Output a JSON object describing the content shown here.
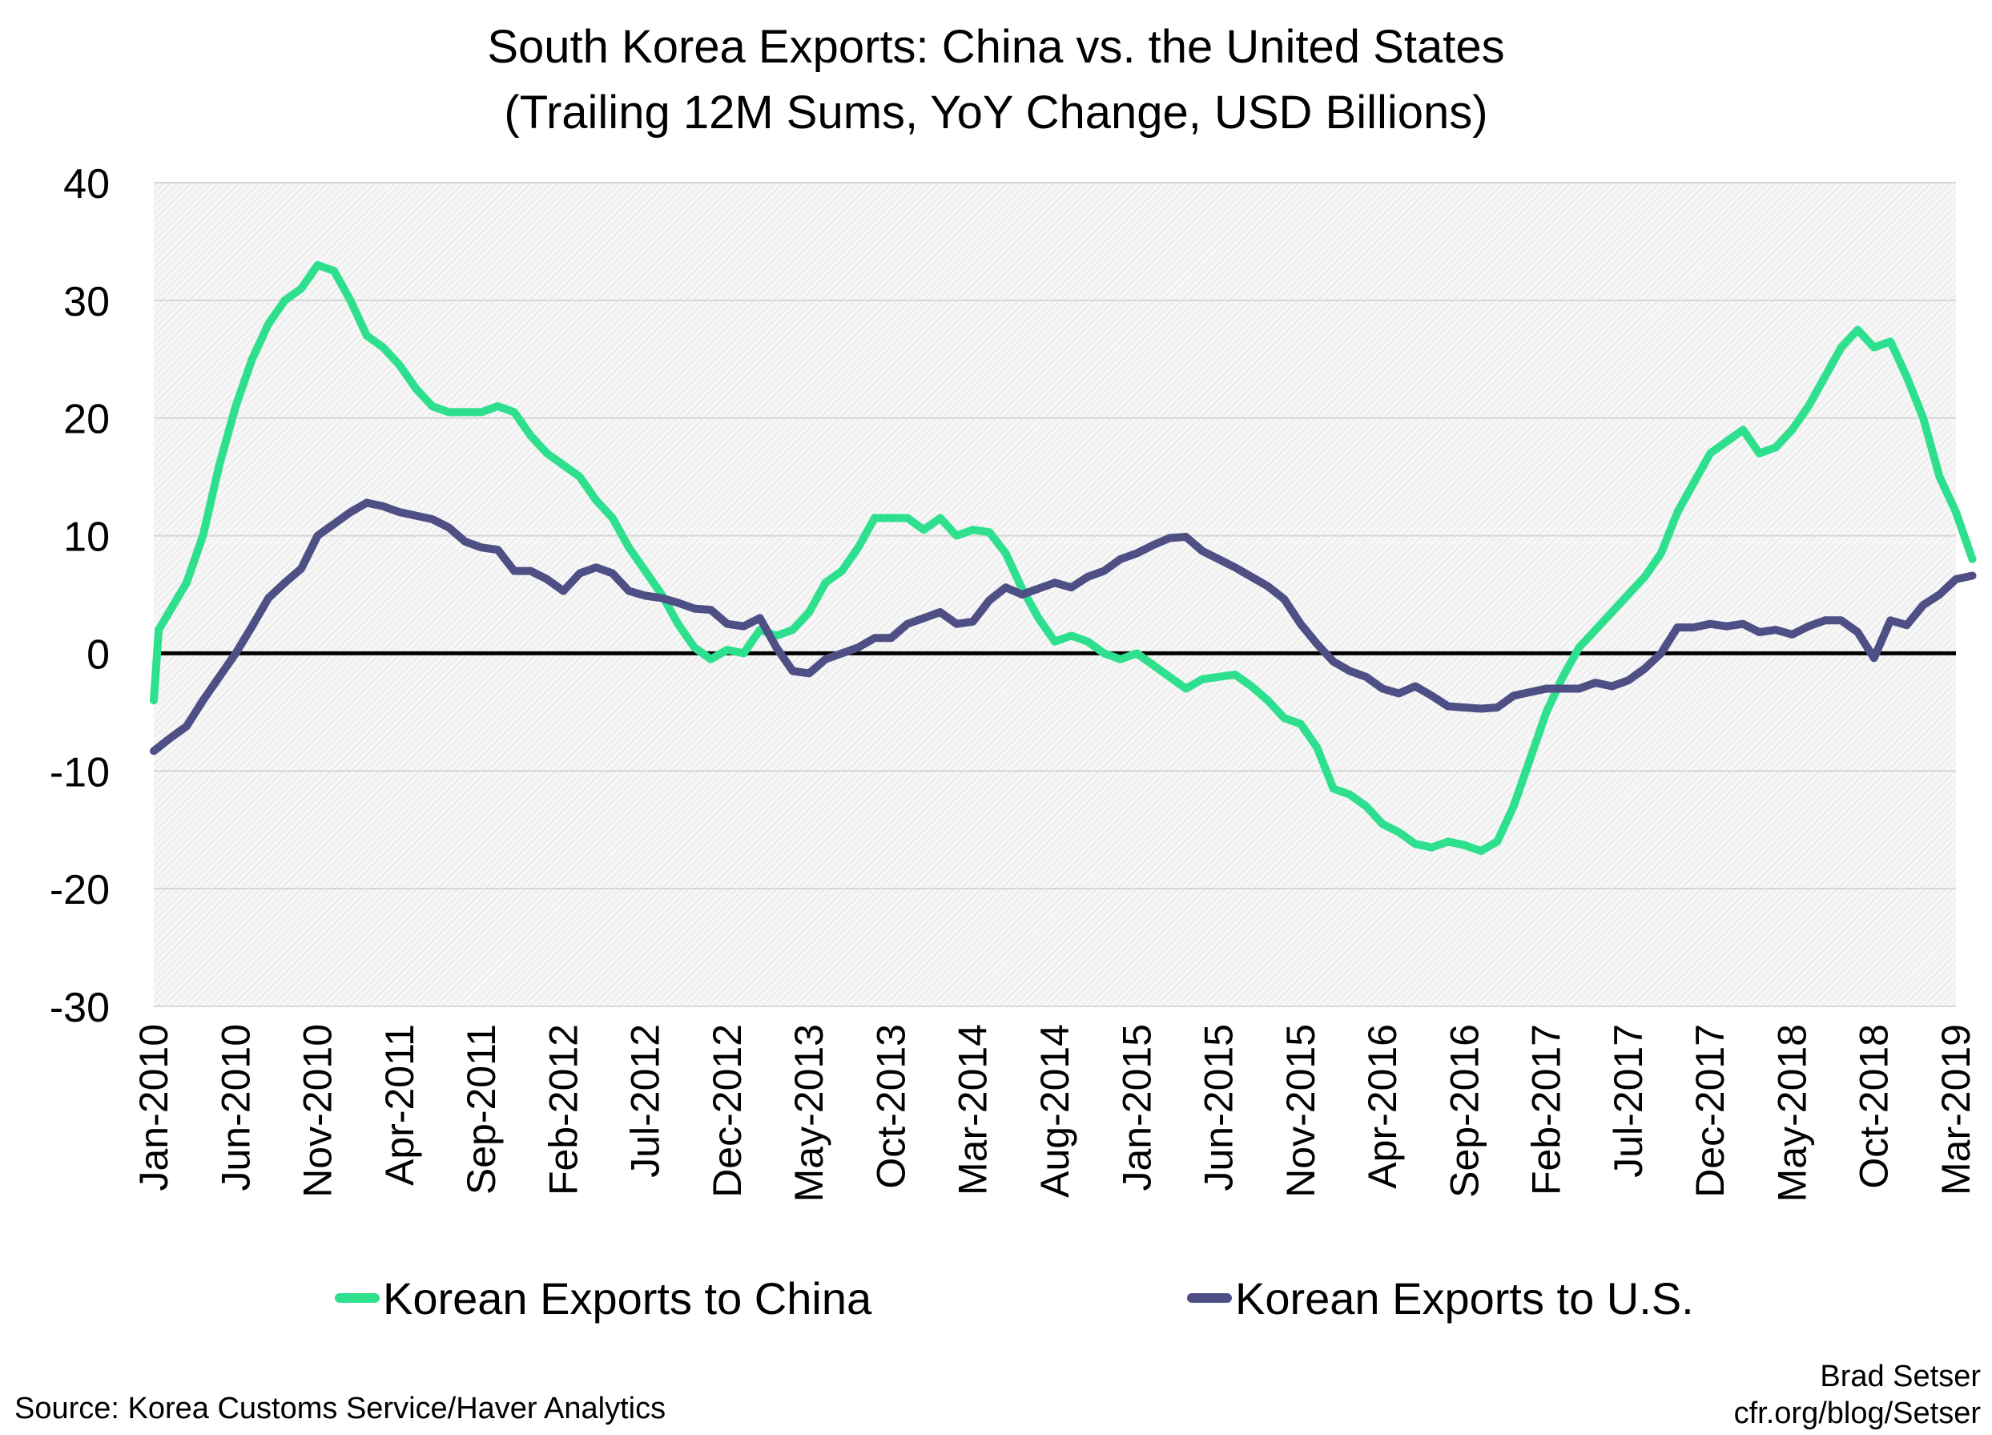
{
  "chart_data": {
    "type": "line",
    "title": "South Korea Exports: China vs. the United States",
    "subtitle": "(Trailing 12M Sums, YoY Change, USD Billions)",
    "ylim": [
      -30,
      40
    ],
    "yticks": [
      40,
      30,
      20,
      10,
      0,
      -10,
      -20,
      -30
    ],
    "xlabels": [
      "Jan-2010",
      "Jun-2010",
      "Nov-2010",
      "Apr-2011",
      "Sep-2011",
      "Feb-2012",
      "Jul-2012",
      "Dec-2012",
      "May-2013",
      "Oct-2013",
      "Mar-2014",
      "Aug-2014",
      "Jan-2015",
      "Jun-2015",
      "Nov-2015",
      "Apr-2016",
      "Sep-2016",
      "Feb-2017",
      "Jul-2017",
      "Dec-2017",
      "May-2018",
      "Oct-2018",
      "Mar-2019"
    ],
    "grid": true,
    "legend_position": "bottom",
    "series": [
      {
        "name": "Korean Exports to China",
        "color": "#2EE08E",
        "points": [
          [
            0,
            -4
          ],
          [
            0.3,
            2
          ],
          [
            2,
            6
          ],
          [
            3,
            10
          ],
          [
            4,
            16
          ],
          [
            5,
            21
          ],
          [
            6,
            25
          ],
          [
            7,
            28
          ],
          [
            8,
            30
          ],
          [
            9,
            31
          ],
          [
            10,
            33
          ],
          [
            11,
            32.5
          ],
          [
            12,
            30
          ],
          [
            13,
            27
          ],
          [
            14,
            26
          ],
          [
            15,
            24.5
          ],
          [
            16,
            22.5
          ],
          [
            17,
            21
          ],
          [
            18,
            20.5
          ],
          [
            20,
            20.5
          ],
          [
            21,
            21
          ],
          [
            22,
            20.5
          ],
          [
            23,
            18.5
          ],
          [
            24,
            17
          ],
          [
            25,
            16
          ],
          [
            26,
            15
          ],
          [
            27,
            13
          ],
          [
            28,
            11.5
          ],
          [
            29,
            9
          ],
          [
            30,
            7
          ],
          [
            31,
            5
          ],
          [
            32,
            2.5
          ],
          [
            33,
            0.5
          ],
          [
            34,
            -0.5
          ],
          [
            35,
            0.3
          ],
          [
            36,
            0
          ],
          [
            37,
            2
          ],
          [
            38,
            1.5
          ],
          [
            39,
            2
          ],
          [
            40,
            3.5
          ],
          [
            41,
            6
          ],
          [
            42,
            7
          ],
          [
            43,
            9
          ],
          [
            44,
            11.5
          ],
          [
            46,
            11.5
          ],
          [
            47,
            10.5
          ],
          [
            48,
            11.5
          ],
          [
            49,
            10
          ],
          [
            50,
            10.5
          ],
          [
            51,
            10.3
          ],
          [
            52,
            8.5
          ],
          [
            53,
            5.5
          ],
          [
            54,
            3
          ],
          [
            55,
            1
          ],
          [
            56,
            1.5
          ],
          [
            57,
            1
          ],
          [
            58,
            0
          ],
          [
            59,
            -0.5
          ],
          [
            60,
            0
          ],
          [
            61,
            -1
          ],
          [
            62,
            -2
          ],
          [
            63,
            -3
          ],
          [
            64,
            -2.2
          ],
          [
            66,
            -1.8
          ],
          [
            67,
            -2.8
          ],
          [
            68,
            -4
          ],
          [
            69,
            -5.5
          ],
          [
            70,
            -6
          ],
          [
            71,
            -8
          ],
          [
            72,
            -11.5
          ],
          [
            73,
            -12
          ],
          [
            74,
            -13
          ],
          [
            75,
            -14.5
          ],
          [
            76,
            -15.2
          ],
          [
            77,
            -16.2
          ],
          [
            78,
            -16.5
          ],
          [
            79,
            -16
          ],
          [
            80,
            -16.3
          ],
          [
            81,
            -16.8
          ],
          [
            82,
            -16
          ],
          [
            83,
            -13
          ],
          [
            84,
            -9
          ],
          [
            85,
            -5
          ],
          [
            86,
            -2
          ],
          [
            87,
            0.5
          ],
          [
            88,
            2
          ],
          [
            89,
            3.5
          ],
          [
            90,
            5
          ],
          [
            91,
            6.5
          ],
          [
            92,
            8.5
          ],
          [
            93,
            12
          ],
          [
            94,
            14.5
          ],
          [
            95,
            17
          ],
          [
            96,
            18
          ],
          [
            97,
            19
          ],
          [
            98,
            17
          ],
          [
            99,
            17.5
          ],
          [
            100,
            19
          ],
          [
            101,
            21
          ],
          [
            102,
            23.5
          ],
          [
            103,
            26
          ],
          [
            104,
            27.5
          ],
          [
            105,
            26
          ],
          [
            106,
            26.5
          ],
          [
            107,
            23.5
          ],
          [
            108,
            20
          ],
          [
            109,
            15
          ],
          [
            110,
            12
          ],
          [
            111,
            8
          ]
        ]
      },
      {
        "name": "Korean Exports to U.S.",
        "color": "#4E4F85",
        "points": [
          [
            0,
            -8.3
          ],
          [
            1,
            -7.2
          ],
          [
            2,
            -6.2
          ],
          [
            3,
            -4
          ],
          [
            4,
            -2
          ],
          [
            5,
            0
          ],
          [
            6,
            2.3
          ],
          [
            7,
            4.7
          ],
          [
            8,
            6
          ],
          [
            9,
            7.2
          ],
          [
            10,
            10
          ],
          [
            11,
            11
          ],
          [
            12,
            12
          ],
          [
            13,
            12.8
          ],
          [
            14,
            12.5
          ],
          [
            15,
            12
          ],
          [
            16,
            11.7
          ],
          [
            17,
            11.4
          ],
          [
            18,
            10.7
          ],
          [
            19,
            9.5
          ],
          [
            20,
            9
          ],
          [
            21,
            8.8
          ],
          [
            22,
            7
          ],
          [
            23,
            7
          ],
          [
            24,
            6.3
          ],
          [
            25,
            5.3
          ],
          [
            26,
            6.8
          ],
          [
            27,
            7.3
          ],
          [
            28,
            6.8
          ],
          [
            29,
            5.3
          ],
          [
            30,
            4.9
          ],
          [
            31,
            4.7
          ],
          [
            32,
            4.3
          ],
          [
            33,
            3.8
          ],
          [
            34,
            3.7
          ],
          [
            35,
            2.5
          ],
          [
            36,
            2.3
          ],
          [
            37,
            3
          ],
          [
            38,
            0.5
          ],
          [
            39,
            -1.5
          ],
          [
            40,
            -1.7
          ],
          [
            41,
            -0.5
          ],
          [
            42,
            0
          ],
          [
            43,
            0.5
          ],
          [
            44,
            1.3
          ],
          [
            45,
            1.3
          ],
          [
            46,
            2.5
          ],
          [
            47,
            3
          ],
          [
            48,
            3.5
          ],
          [
            49,
            2.5
          ],
          [
            50,
            2.7
          ],
          [
            51,
            4.5
          ],
          [
            52,
            5.6
          ],
          [
            53,
            5
          ],
          [
            54,
            5.5
          ],
          [
            55,
            6
          ],
          [
            56,
            5.6
          ],
          [
            57,
            6.5
          ],
          [
            58,
            7
          ],
          [
            59,
            8
          ],
          [
            60,
            8.5
          ],
          [
            61,
            9.2
          ],
          [
            62,
            9.8
          ],
          [
            63,
            9.9
          ],
          [
            64,
            8.7
          ],
          [
            65,
            8
          ],
          [
            66,
            7.3
          ],
          [
            67,
            6.5
          ],
          [
            68,
            5.7
          ],
          [
            69,
            4.6
          ],
          [
            70,
            2.5
          ],
          [
            71,
            0.8
          ],
          [
            72,
            -0.7
          ],
          [
            73,
            -1.5
          ],
          [
            74,
            -2
          ],
          [
            75,
            -3
          ],
          [
            76,
            -3.4
          ],
          [
            77,
            -2.8
          ],
          [
            78,
            -3.6
          ],
          [
            79,
            -4.5
          ],
          [
            80,
            -4.6
          ],
          [
            81,
            -4.7
          ],
          [
            82,
            -4.6
          ],
          [
            83,
            -3.6
          ],
          [
            84,
            -3.3
          ],
          [
            85,
            -3
          ],
          [
            86,
            -3
          ],
          [
            87,
            -3
          ],
          [
            88,
            -2.5
          ],
          [
            89,
            -2.8
          ],
          [
            90,
            -2.3
          ],
          [
            91,
            -1.3
          ],
          [
            92,
            0
          ],
          [
            93,
            2.2
          ],
          [
            94,
            2.2
          ],
          [
            95,
            2.5
          ],
          [
            96,
            2.3
          ],
          [
            97,
            2.5
          ],
          [
            98,
            1.8
          ],
          [
            99,
            2
          ],
          [
            100,
            1.6
          ],
          [
            101,
            2.3
          ],
          [
            102,
            2.8
          ],
          [
            103,
            2.8
          ],
          [
            104,
            1.8
          ],
          [
            105,
            -0.4
          ],
          [
            106,
            2.8
          ],
          [
            107,
            2.4
          ],
          [
            108,
            4.1
          ],
          [
            109,
            5
          ],
          [
            110,
            6.3
          ],
          [
            111,
            6.6
          ]
        ]
      }
    ]
  },
  "source_note": "Source: Korea Customs Service/Haver Analytics",
  "credit_name": "Brad Setser",
  "credit_site": "cfr.org/blog/Setser"
}
